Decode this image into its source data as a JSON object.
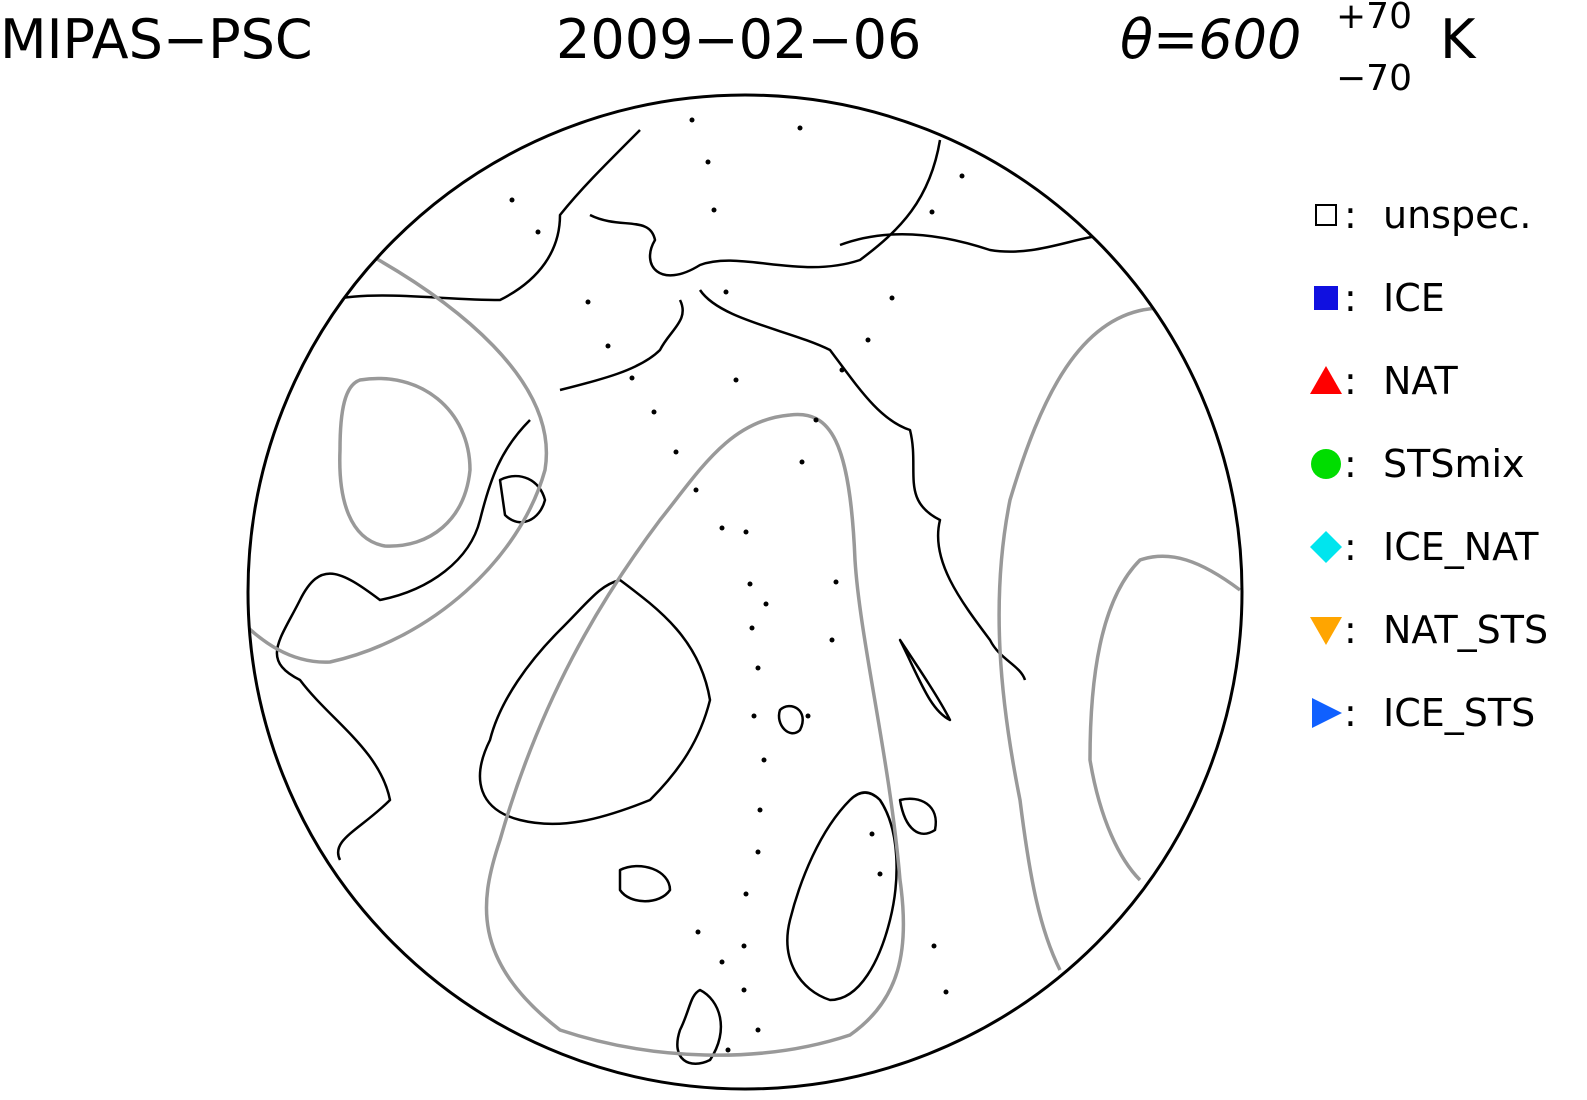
{
  "title": {
    "instrument": "MIPAS−PSC",
    "date": "2009−02−06",
    "theta": "θ=600",
    "upper": "+70",
    "lower": "−70",
    "unit": "K"
  },
  "legend": {
    "separator": ":",
    "items": [
      {
        "label": "unspec.",
        "shape": "square-open",
        "color": "#000000"
      },
      {
        "label": "ICE",
        "shape": "square",
        "color": "#1010e0"
      },
      {
        "label": "NAT",
        "shape": "triangle-up",
        "color": "#ff0000"
      },
      {
        "label": "STSmix",
        "shape": "circle",
        "color": "#00dd00"
      },
      {
        "label": "ICE_NAT",
        "shape": "diamond",
        "color": "#00e5ee"
      },
      {
        "label": "NAT_STS",
        "shape": "triangle-down",
        "color": "#ffa500"
      },
      {
        "label": "ICE_STS",
        "shape": "triangle-right",
        "color": "#1060ff"
      }
    ]
  }
}
